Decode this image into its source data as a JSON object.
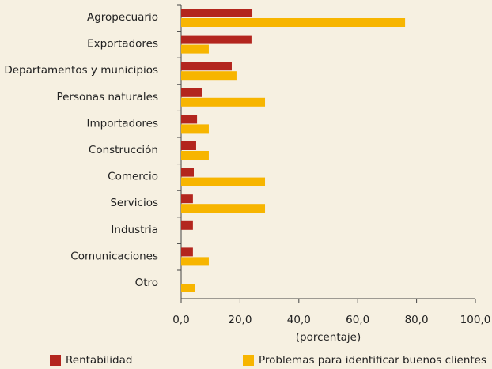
{
  "chart_data": {
    "type": "hbar",
    "categories": [
      "Agropecuario",
      "Exportadores",
      "Departamentos y municipios",
      "Personas naturales",
      "Importadores",
      "Construcción",
      "Comercio",
      "Servicios",
      "Industria",
      "Comunicaciones",
      "Otro"
    ],
    "series": [
      {
        "name": "Rentabilidad",
        "color": "#b3261e",
        "values": [
          24.2,
          23.9,
          17.2,
          7.0,
          5.4,
          5.1,
          4.3,
          4.0,
          4.0,
          4.0,
          0
        ]
      },
      {
        "name": "Problemas para identificar buenos clientes",
        "color": "#f7b500",
        "values": [
          76.1,
          9.4,
          18.8,
          28.5,
          9.4,
          9.4,
          28.5,
          28.5,
          0,
          9.4,
          4.6
        ]
      }
    ],
    "xlim": [
      0,
      100
    ],
    "xticks": [
      {
        "value": 0,
        "label": "0,0"
      },
      {
        "value": 20,
        "label": "20,0"
      },
      {
        "value": 40,
        "label": "40,0"
      },
      {
        "value": 60,
        "label": "60,0"
      },
      {
        "value": 80,
        "label": "80,0"
      },
      {
        "value": 100,
        "label": "100,0"
      }
    ],
    "xlabel": "(porcentaje)",
    "legend": "bottom"
  }
}
